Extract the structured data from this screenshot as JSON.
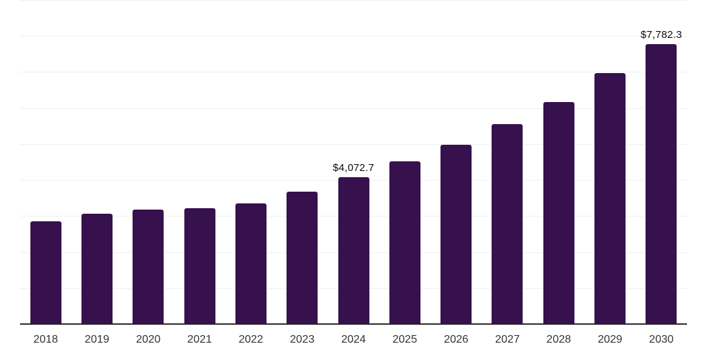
{
  "chart_data": {
    "type": "bar",
    "title": "",
    "xlabel": "",
    "ylabel": "",
    "categories": [
      "2018",
      "2019",
      "2020",
      "2021",
      "2022",
      "2023",
      "2024",
      "2025",
      "2026",
      "2027",
      "2028",
      "2029",
      "2030"
    ],
    "values": [
      2845,
      3070,
      3185,
      3225,
      3360,
      3675,
      4072.7,
      4520,
      4985,
      5555,
      6165,
      6970,
      7782.3
    ],
    "data_labels": [
      {
        "category": "2024",
        "text": "$4,072.7"
      },
      {
        "category": "2030",
        "text": "$7,782.3"
      }
    ],
    "ylim": [
      0,
      9000
    ],
    "gridline_step": 1000,
    "grid": "horizontal-only",
    "legend": "none",
    "y_axis_tick_labels": "none",
    "colors": {
      "bar": "#36114E",
      "gridline": "#F0F0F0",
      "axis": "#2B2B2B",
      "tick_label": "#333333",
      "data_label": "#0D0D0D",
      "background": "#FFFFFF"
    }
  }
}
